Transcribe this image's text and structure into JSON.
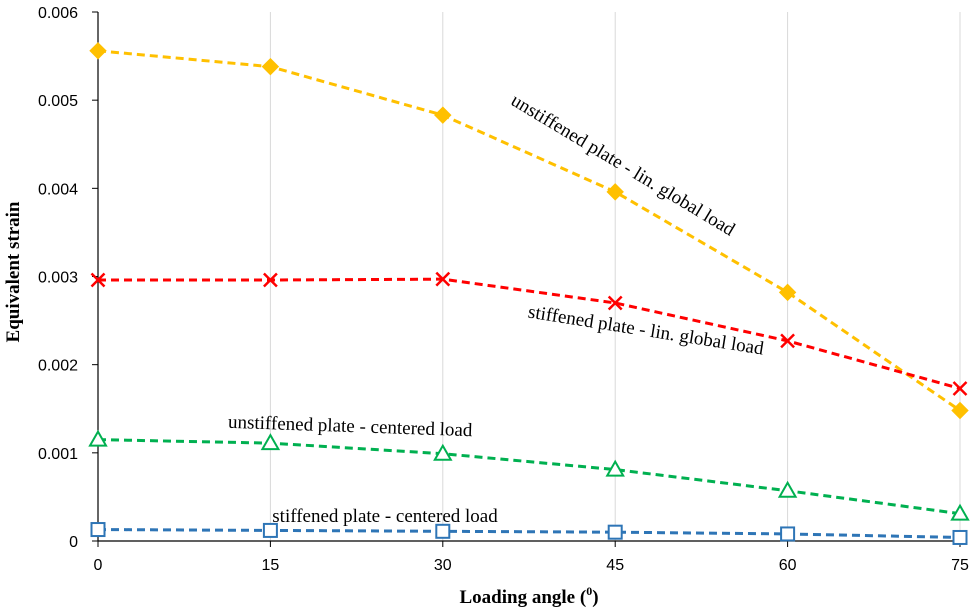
{
  "chart_data": {
    "type": "line",
    "title": "",
    "xlabel": "Loading angle (",
    "xlabel_superscript": "0",
    "xlabel_suffix": ")",
    "ylabel": "Equivalent strain",
    "x": [
      0,
      15,
      30,
      45,
      60,
      75
    ],
    "x_tick_labels": [
      "0",
      "15",
      "30",
      "45",
      "60",
      "75"
    ],
    "xlim": [
      0,
      75
    ],
    "ylim": [
      0,
      0.006
    ],
    "y_ticks": [
      0,
      0.001,
      0.002,
      0.003,
      0.004,
      0.005,
      0.006
    ],
    "y_tick_labels": [
      "0",
      "0.001",
      "0.002",
      "0.003",
      "0.004",
      "0.005",
      "0.006"
    ],
    "grid": "vertical",
    "legend": "none",
    "series": [
      {
        "name": "unstiffened plate - lin. global load",
        "color": "#FFC000",
        "marker": "diamond",
        "values": [
          0.00556,
          0.00538,
          0.00483,
          0.00396,
          0.00282,
          0.00148
        ]
      },
      {
        "name": "stiffened plate - lin. global load",
        "color": "#FF0000",
        "marker": "x",
        "values": [
          0.00296,
          0.00296,
          0.00297,
          0.0027,
          0.00227,
          0.00173
        ]
      },
      {
        "name": "unstiffened plate - centered load",
        "color": "#00B050",
        "marker": "triangle",
        "values": [
          0.00115,
          0.00111,
          0.00099,
          0.00081,
          0.00057,
          0.00031
        ]
      },
      {
        "name": "stiffened plate - centered load",
        "color": "#2E75B6",
        "marker": "square",
        "values": [
          0.00013,
          0.00012,
          0.00011,
          0.0001,
          8e-05,
          4e-05
        ]
      }
    ]
  }
}
